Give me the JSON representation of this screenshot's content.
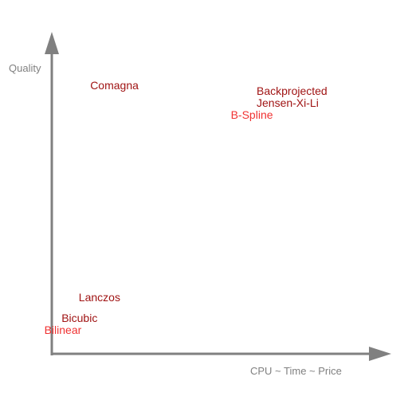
{
  "colors": {
    "axis": "#808080",
    "label_dark": "#a01414",
    "label_bright": "#f03232"
  },
  "chart_data": {
    "type": "scatter",
    "xlabel": "CPU ~ Time ~ Price",
    "ylabel": "Quality",
    "xlim": [
      0,
      100
    ],
    "ylim": [
      0,
      100
    ],
    "grid": false,
    "points": [
      {
        "label": "Comagna",
        "x": 12,
        "y": 86,
        "color": "label_dark"
      },
      {
        "label": "Backprojected",
        "x": 70,
        "y": 84,
        "color": "label_dark"
      },
      {
        "label": "Jensen-Xi-Li",
        "x": 70,
        "y": 80,
        "color": "label_dark"
      },
      {
        "label": "B-Spline",
        "x": 61,
        "y": 76,
        "color": "label_bright"
      },
      {
        "label": "Lanczos",
        "x": 8,
        "y": 14,
        "color": "label_dark"
      },
      {
        "label": "Bicubic",
        "x": 2,
        "y": 7,
        "color": "label_dark"
      },
      {
        "label": "Bilinear",
        "x": -4,
        "y": 3,
        "color": "label_bright"
      }
    ]
  }
}
